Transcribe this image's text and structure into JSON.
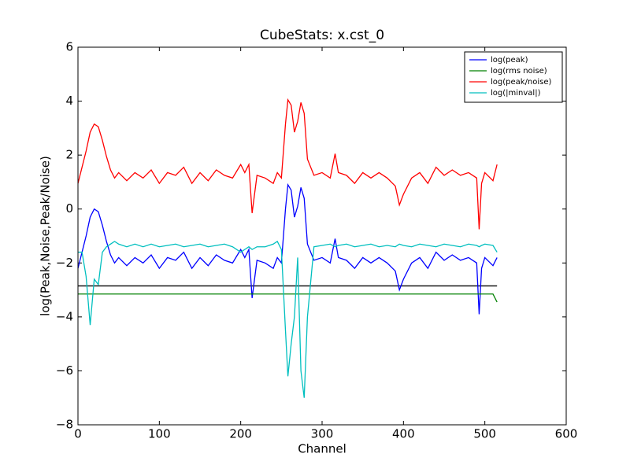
{
  "chart_data": {
    "type": "line",
    "title": "CubeStats: x.cst_0",
    "x_label": "Channel",
    "y_label": "log(Peak,Noise,Peak/Noise)",
    "x": [
      0,
      5,
      10,
      15,
      20,
      25,
      30,
      35,
      40,
      45,
      50,
      60,
      70,
      80,
      90,
      100,
      110,
      120,
      130,
      140,
      150,
      160,
      170,
      180,
      190,
      200,
      205,
      210,
      214,
      220,
      230,
      240,
      245,
      250,
      255,
      258,
      262,
      266,
      270,
      274,
      278,
      282,
      290,
      300,
      310,
      316,
      320,
      330,
      340,
      350,
      360,
      370,
      380,
      390,
      395,
      400,
      410,
      420,
      430,
      440,
      450,
      460,
      470,
      480,
      490,
      493,
      496,
      500,
      510,
      515
    ],
    "series": [
      {
        "name": "log(peak)",
        "color": "#0000ff",
        "values": [
          -2.2,
          -1.6,
          -1.0,
          -0.3,
          0.0,
          -0.1,
          -0.6,
          -1.2,
          -1.7,
          -2.0,
          -1.8,
          -2.1,
          -1.8,
          -2.0,
          -1.7,
          -2.2,
          -1.8,
          -1.9,
          -1.6,
          -2.2,
          -1.8,
          -2.1,
          -1.7,
          -1.9,
          -2.0,
          -1.5,
          -1.8,
          -1.5,
          -3.3,
          -1.9,
          -2.0,
          -2.2,
          -1.8,
          -2.0,
          0.0,
          0.9,
          0.7,
          -0.3,
          0.1,
          0.8,
          0.4,
          -1.3,
          -1.9,
          -1.8,
          -2.0,
          -1.1,
          -1.8,
          -1.9,
          -2.2,
          -1.8,
          -2.0,
          -1.8,
          -2.0,
          -2.3,
          -3.0,
          -2.6,
          -2.0,
          -1.8,
          -2.2,
          -1.6,
          -1.9,
          -1.7,
          -1.9,
          -1.8,
          -2.0,
          -3.9,
          -2.2,
          -1.8,
          -2.1,
          -1.8
        ]
      },
      {
        "name": "log(rms noise)",
        "color": "#008000",
        "values": [
          -3.15,
          -3.15,
          -3.15,
          -3.15,
          -3.15,
          -3.15,
          -3.15,
          -3.15,
          -3.15,
          -3.15,
          -3.15,
          -3.15,
          -3.15,
          -3.15,
          -3.15,
          -3.15,
          -3.15,
          -3.15,
          -3.15,
          -3.15,
          -3.15,
          -3.15,
          -3.15,
          -3.15,
          -3.15,
          -3.15,
          -3.15,
          -3.15,
          -3.15,
          -3.15,
          -3.15,
          -3.15,
          -3.15,
          -3.15,
          -3.15,
          -3.15,
          -3.15,
          -3.15,
          -3.15,
          -3.15,
          -3.15,
          -3.15,
          -3.15,
          -3.15,
          -3.15,
          -3.15,
          -3.15,
          -3.15,
          -3.15,
          -3.15,
          -3.15,
          -3.15,
          -3.15,
          -3.15,
          -3.15,
          -3.15,
          -3.15,
          -3.15,
          -3.15,
          -3.15,
          -3.15,
          -3.15,
          -3.15,
          -3.15,
          -3.15,
          -3.15,
          -3.15,
          -3.15,
          -3.15,
          -3.45
        ]
      },
      {
        "name": "log(peak/noise)",
        "color": "#ff0000",
        "values": [
          0.95,
          1.55,
          2.15,
          2.85,
          3.15,
          3.05,
          2.55,
          1.95,
          1.45,
          1.15,
          1.35,
          1.05,
          1.35,
          1.15,
          1.45,
          0.95,
          1.35,
          1.25,
          1.55,
          0.95,
          1.35,
          1.05,
          1.45,
          1.25,
          1.15,
          1.65,
          1.35,
          1.65,
          -0.15,
          1.25,
          1.15,
          0.95,
          1.35,
          1.15,
          3.15,
          4.05,
          3.85,
          2.85,
          3.25,
          3.95,
          3.55,
          1.85,
          1.25,
          1.35,
          1.15,
          2.05,
          1.35,
          1.25,
          0.95,
          1.35,
          1.15,
          1.35,
          1.15,
          0.85,
          0.15,
          0.55,
          1.15,
          1.35,
          0.95,
          1.55,
          1.25,
          1.45,
          1.25,
          1.35,
          1.15,
          -0.75,
          0.95,
          1.35,
          1.05,
          1.65
        ]
      },
      {
        "name": "log(|minval|)",
        "color": "#00bfbf",
        "values": [
          -1.6,
          -1.6,
          -2.5,
          -4.3,
          -2.6,
          -2.8,
          -1.6,
          -1.4,
          -1.3,
          -1.2,
          -1.3,
          -1.4,
          -1.3,
          -1.4,
          -1.3,
          -1.4,
          -1.35,
          -1.3,
          -1.4,
          -1.35,
          -1.3,
          -1.4,
          -1.35,
          -1.3,
          -1.4,
          -1.6,
          -1.5,
          -1.4,
          -1.5,
          -1.4,
          -1.4,
          -1.3,
          -1.2,
          -1.5,
          -4.5,
          -6.2,
          -5.0,
          -4.0,
          -1.8,
          -6.0,
          -7.0,
          -4.0,
          -1.4,
          -1.35,
          -1.3,
          -1.4,
          -1.35,
          -1.3,
          -1.4,
          -1.35,
          -1.3,
          -1.4,
          -1.35,
          -1.4,
          -1.3,
          -1.35,
          -1.4,
          -1.3,
          -1.35,
          -1.4,
          -1.3,
          -1.35,
          -1.4,
          -1.3,
          -1.35,
          -1.4,
          -1.35,
          -1.3,
          -1.35,
          -1.6
        ]
      }
    ],
    "reference_line": {
      "x": [
        0,
        515
      ],
      "values": [
        -2.85,
        -2.85
      ],
      "color": "#000000"
    },
    "xlim": [
      0,
      600
    ],
    "xticks": [
      0,
      100,
      200,
      300,
      400,
      500,
      600
    ],
    "ylim": [
      -8,
      6
    ],
    "yticks": [
      {
        "value": -8,
        "label": "−8"
      },
      {
        "value": -6,
        "label": "−6"
      },
      {
        "value": -4,
        "label": "−4"
      },
      {
        "value": -2,
        "label": "−2"
      },
      0,
      2,
      4,
      6
    ],
    "legend": "upper right"
  }
}
